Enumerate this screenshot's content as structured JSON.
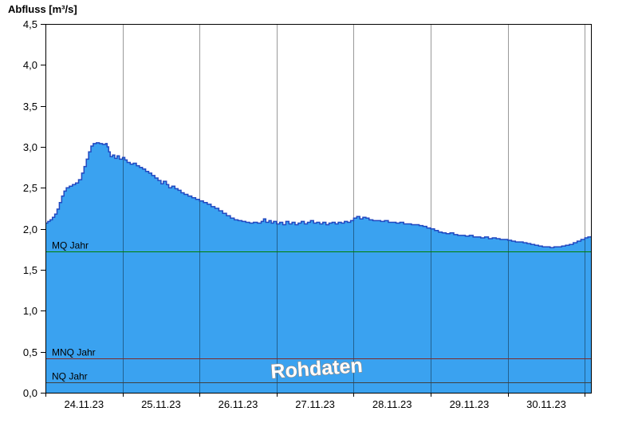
{
  "header": {
    "y_axis_title": "Abfluss [m³/s]"
  },
  "watermark": {
    "text": "Rohdaten"
  },
  "chart_data": {
    "type": "area",
    "title": "",
    "ylabel": "Abfluss [m³/s]",
    "xlabel": "",
    "ylim": [
      0,
      4.5
    ],
    "xlim_days": [
      0,
      7.08
    ],
    "x_unit": "days since 24.11.23 00:00",
    "grid": "vertical-only",
    "legend": "none",
    "y_tick_values": [
      0,
      0.5,
      1,
      1.5,
      2,
      2.5,
      3,
      3.5,
      4,
      4.5
    ],
    "y_tick_labels": [
      "0,0",
      "0,5",
      "1,0",
      "1,5",
      "2,0",
      "2,5",
      "3,0",
      "3,5",
      "4,0",
      "4,5"
    ],
    "x_tick_labels": [
      "24.11.23",
      "25.11.23",
      "26.11.23",
      "27.11.23",
      "28.11.23",
      "29.11.23",
      "30.11.23"
    ],
    "grid_days": [
      1,
      2,
      3,
      4,
      5,
      6,
      7
    ],
    "reference_lines": [
      {
        "label": "MQ Jahr",
        "value": 1.72,
        "color": "#008000"
      },
      {
        "label": "MNQ Jahr",
        "value": 0.42,
        "color": "#7E2A2A"
      },
      {
        "label": "NQ Jahr",
        "value": 0.13,
        "color": "#404040"
      }
    ],
    "colors": {
      "area_fill": "#3AA2F0",
      "area_edge": "#2148C0",
      "grid_line": "rgba(0,0,0,0.40)",
      "frame": "#000000",
      "text": "#000000",
      "watermark_fill": "#FFFFFF",
      "watermark_outline": "#8C8C8C"
    },
    "series": [
      {
        "name": "Abfluss (Rohdaten)",
        "points": [
          [
            0.0,
            2.07
          ],
          [
            0.03,
            2.09
          ],
          [
            0.06,
            2.11
          ],
          [
            0.09,
            2.14
          ],
          [
            0.12,
            2.18
          ],
          [
            0.15,
            2.24
          ],
          [
            0.18,
            2.32
          ],
          [
            0.21,
            2.4
          ],
          [
            0.24,
            2.46
          ],
          [
            0.27,
            2.5
          ],
          [
            0.31,
            2.52
          ],
          [
            0.35,
            2.54
          ],
          [
            0.39,
            2.56
          ],
          [
            0.43,
            2.6
          ],
          [
            0.47,
            2.68
          ],
          [
            0.5,
            2.76
          ],
          [
            0.53,
            2.85
          ],
          [
            0.56,
            2.94
          ],
          [
            0.59,
            3.01
          ],
          [
            0.62,
            3.04
          ],
          [
            0.66,
            3.05
          ],
          [
            0.7,
            3.04
          ],
          [
            0.74,
            3.03
          ],
          [
            0.78,
            3.04
          ],
          [
            0.8,
            3.0
          ],
          [
            0.82,
            2.94
          ],
          [
            0.84,
            2.88
          ],
          [
            0.87,
            2.9
          ],
          [
            0.9,
            2.86
          ],
          [
            0.93,
            2.89
          ],
          [
            0.96,
            2.85
          ],
          [
            1.0,
            2.87
          ],
          [
            1.03,
            2.84
          ],
          [
            1.06,
            2.81
          ],
          [
            1.1,
            2.79
          ],
          [
            1.14,
            2.8
          ],
          [
            1.18,
            2.77
          ],
          [
            1.22,
            2.75
          ],
          [
            1.26,
            2.73
          ],
          [
            1.3,
            2.7
          ],
          [
            1.34,
            2.68
          ],
          [
            1.38,
            2.65
          ],
          [
            1.42,
            2.62
          ],
          [
            1.46,
            2.59
          ],
          [
            1.5,
            2.55
          ],
          [
            1.53,
            2.58
          ],
          [
            1.57,
            2.54
          ],
          [
            1.6,
            2.5
          ],
          [
            1.64,
            2.52
          ],
          [
            1.68,
            2.49
          ],
          [
            1.72,
            2.47
          ],
          [
            1.76,
            2.44
          ],
          [
            1.8,
            2.42
          ],
          [
            1.85,
            2.4
          ],
          [
            1.9,
            2.38
          ],
          [
            1.95,
            2.36
          ],
          [
            2.0,
            2.34
          ],
          [
            2.05,
            2.32
          ],
          [
            2.1,
            2.3
          ],
          [
            2.15,
            2.27
          ],
          [
            2.2,
            2.25
          ],
          [
            2.25,
            2.22
          ],
          [
            2.3,
            2.19
          ],
          [
            2.35,
            2.16
          ],
          [
            2.4,
            2.13
          ],
          [
            2.45,
            2.11
          ],
          [
            2.5,
            2.1
          ],
          [
            2.55,
            2.09
          ],
          [
            2.6,
            2.08
          ],
          [
            2.65,
            2.07
          ],
          [
            2.7,
            2.08
          ],
          [
            2.75,
            2.07
          ],
          [
            2.8,
            2.09
          ],
          [
            2.83,
            2.12
          ],
          [
            2.86,
            2.08
          ],
          [
            2.9,
            2.1
          ],
          [
            2.93,
            2.07
          ],
          [
            2.96,
            2.09
          ],
          [
            3.0,
            2.06
          ],
          [
            3.04,
            2.08
          ],
          [
            3.08,
            2.05
          ],
          [
            3.12,
            2.09
          ],
          [
            3.16,
            2.06
          ],
          [
            3.2,
            2.08
          ],
          [
            3.24,
            2.05
          ],
          [
            3.28,
            2.07
          ],
          [
            3.32,
            2.09
          ],
          [
            3.36,
            2.06
          ],
          [
            3.4,
            2.08
          ],
          [
            3.44,
            2.1
          ],
          [
            3.48,
            2.07
          ],
          [
            3.52,
            2.08
          ],
          [
            3.56,
            2.06
          ],
          [
            3.6,
            2.08
          ],
          [
            3.64,
            2.05
          ],
          [
            3.68,
            2.07
          ],
          [
            3.72,
            2.08
          ],
          [
            3.76,
            2.06
          ],
          [
            3.8,
            2.08
          ],
          [
            3.84,
            2.07
          ],
          [
            3.88,
            2.09
          ],
          [
            3.92,
            2.08
          ],
          [
            3.96,
            2.1
          ],
          [
            4.0,
            2.13
          ],
          [
            4.04,
            2.15
          ],
          [
            4.08,
            2.12
          ],
          [
            4.12,
            2.14
          ],
          [
            4.16,
            2.13
          ],
          [
            4.2,
            2.11
          ],
          [
            4.25,
            2.1
          ],
          [
            4.3,
            2.1
          ],
          [
            4.35,
            2.09
          ],
          [
            4.4,
            2.1
          ],
          [
            4.45,
            2.08
          ],
          [
            4.5,
            2.08
          ],
          [
            4.55,
            2.07
          ],
          [
            4.6,
            2.08
          ],
          [
            4.65,
            2.06
          ],
          [
            4.7,
            2.06
          ],
          [
            4.75,
            2.05
          ],
          [
            4.8,
            2.05
          ],
          [
            4.85,
            2.04
          ],
          [
            4.9,
            2.03
          ],
          [
            4.95,
            2.01
          ],
          [
            5.0,
            2.0
          ],
          [
            5.05,
            1.98
          ],
          [
            5.1,
            1.96
          ],
          [
            5.15,
            1.95
          ],
          [
            5.2,
            1.94
          ],
          [
            5.25,
            1.95
          ],
          [
            5.3,
            1.93
          ],
          [
            5.35,
            1.92
          ],
          [
            5.4,
            1.92
          ],
          [
            5.45,
            1.91
          ],
          [
            5.5,
            1.92
          ],
          [
            5.55,
            1.9
          ],
          [
            5.6,
            1.9
          ],
          [
            5.65,
            1.89
          ],
          [
            5.7,
            1.9
          ],
          [
            5.75,
            1.88
          ],
          [
            5.8,
            1.89
          ],
          [
            5.85,
            1.88
          ],
          [
            5.9,
            1.87
          ],
          [
            5.95,
            1.87
          ],
          [
            6.0,
            1.86
          ],
          [
            6.05,
            1.85
          ],
          [
            6.1,
            1.84
          ],
          [
            6.15,
            1.84
          ],
          [
            6.2,
            1.83
          ],
          [
            6.25,
            1.82
          ],
          [
            6.3,
            1.81
          ],
          [
            6.35,
            1.8
          ],
          [
            6.4,
            1.79
          ],
          [
            6.45,
            1.78
          ],
          [
            6.5,
            1.78
          ],
          [
            6.55,
            1.77
          ],
          [
            6.6,
            1.78
          ],
          [
            6.65,
            1.78
          ],
          [
            6.7,
            1.79
          ],
          [
            6.75,
            1.8
          ],
          [
            6.8,
            1.81
          ],
          [
            6.85,
            1.83
          ],
          [
            6.9,
            1.85
          ],
          [
            6.95,
            1.87
          ],
          [
            7.0,
            1.89
          ],
          [
            7.04,
            1.9
          ],
          [
            7.08,
            1.91
          ]
        ]
      }
    ]
  }
}
